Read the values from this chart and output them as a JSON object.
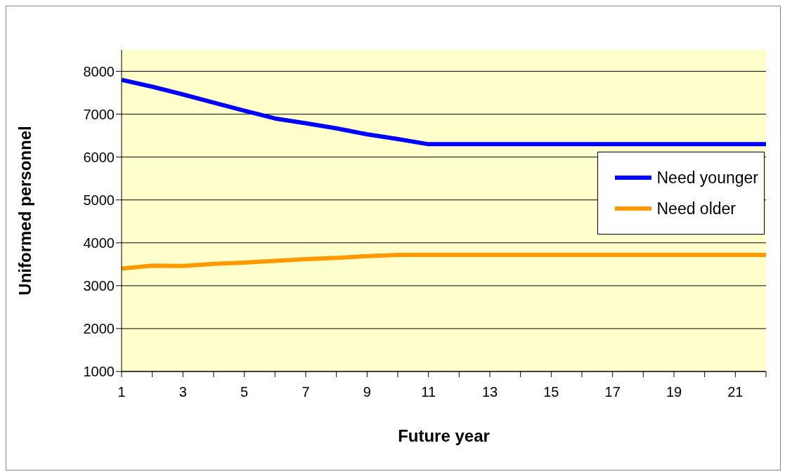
{
  "chart_data": {
    "type": "line",
    "xlabel": "Future year",
    "ylabel": "Uniformed personnel",
    "x": [
      1,
      2,
      3,
      4,
      5,
      6,
      7,
      8,
      9,
      10,
      11,
      12,
      13,
      14,
      15,
      16,
      17,
      18,
      19,
      20,
      21,
      22
    ],
    "series": [
      {
        "name": "Need younger",
        "color": "#0000ff",
        "values": [
          7800,
          7640,
          7460,
          7270,
          7080,
          6900,
          6790,
          6670,
          6530,
          6420,
          6300,
          6300,
          6300,
          6300,
          6300,
          6300,
          6300,
          6300,
          6300,
          6300,
          6300,
          6300
        ]
      },
      {
        "name": "Need older",
        "color": "#ff9900",
        "values": [
          3400,
          3470,
          3460,
          3510,
          3540,
          3580,
          3620,
          3650,
          3690,
          3720,
          3720,
          3720,
          3720,
          3720,
          3720,
          3720,
          3720,
          3720,
          3720,
          3720,
          3720,
          3720
        ]
      }
    ],
    "xlim": [
      1,
      22
    ],
    "xticks": [
      1,
      {
        "value": 2,
        "label": null
      },
      3,
      {
        "value": 4,
        "label": null
      },
      5,
      {
        "value": 6,
        "label": null
      },
      7,
      {
        "value": 8,
        "label": null
      },
      9,
      {
        "value": 10,
        "label": null
      },
      11,
      {
        "value": 12,
        "label": null
      },
      13,
      {
        "value": 14,
        "label": null
      },
      15,
      {
        "value": 16,
        "label": null
      },
      17,
      {
        "value": 18,
        "label": null
      },
      19,
      {
        "value": 20,
        "label": null
      },
      21,
      {
        "value": 22,
        "label": null
      }
    ],
    "ylim": [
      1000,
      8500
    ],
    "yticks": [
      1000,
      2000,
      3000,
      4000,
      5000,
      6000,
      7000,
      8000
    ],
    "grid": "y",
    "legend": "right",
    "marker": "none",
    "line_style": "solid"
  }
}
